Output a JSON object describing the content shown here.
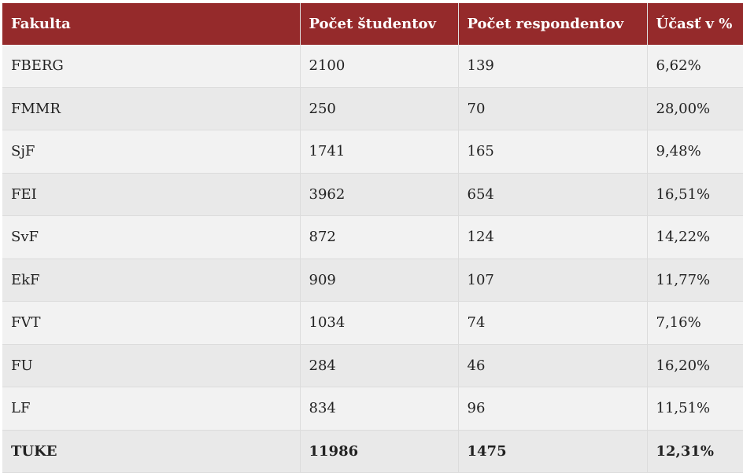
{
  "table": {
    "headers": [
      "Fakulta",
      "Počet študentov",
      "Počet respondentov",
      "Účasť v %"
    ],
    "rows": [
      [
        "FBERG",
        "2100",
        "139",
        "6,62%"
      ],
      [
        "FMMR",
        "250",
        "70",
        "28,00%"
      ],
      [
        "SjF",
        "1741",
        "165",
        "9,48%"
      ],
      [
        "FEI",
        "3962",
        "654",
        "16,51%"
      ],
      [
        "SvF",
        "872",
        "124",
        "14,22%"
      ],
      [
        "EkF",
        "909",
        "107",
        "11,77%"
      ],
      [
        "FVT",
        "1034",
        "74",
        "7,16%"
      ],
      [
        "FU",
        "284",
        "46",
        "16,20%"
      ],
      [
        "LF",
        "834",
        "96",
        "11,51%"
      ],
      [
        "TUKE",
        "11986",
        "1475",
        "12,31%"
      ]
    ]
  },
  "colors": {
    "header_bg": "#952a2b",
    "row_odd": "#f2f2f2",
    "row_even": "#e9e9e9"
  }
}
